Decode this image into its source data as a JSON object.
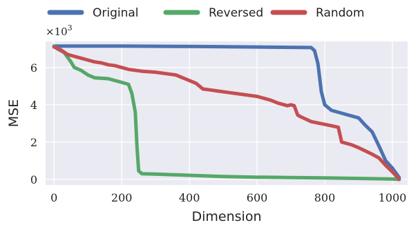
{
  "chart_data": {
    "type": "line",
    "xlabel": "Dimension",
    "ylabel": "MSE",
    "y_scale_label": "×10",
    "y_scale_exponent": "3",
    "xlim": [
      -25,
      1045
    ],
    "ylim": [
      -0.3,
      7.4
    ],
    "x_ticks": [
      0,
      200,
      400,
      600,
      800,
      1000
    ],
    "x_tick_labels": [
      "0",
      "200",
      "400",
      "600",
      "800",
      "1000"
    ],
    "y_ticks": [
      0,
      2,
      4,
      6
    ],
    "y_tick_labels": [
      "0",
      "2",
      "4",
      "6"
    ],
    "grid": true,
    "legend_position": "top",
    "series": [
      {
        "name": "Original",
        "color": "#4c72b0",
        "x": [
          0,
          200,
          400,
          600,
          700,
          760,
          770,
          780,
          790,
          800,
          820,
          860,
          900,
          920,
          940,
          960,
          980,
          1000,
          1020
        ],
        "y": [
          7.15,
          7.15,
          7.13,
          7.1,
          7.08,
          7.07,
          6.9,
          6.2,
          4.7,
          4.0,
          3.7,
          3.5,
          3.3,
          2.9,
          2.55,
          1.8,
          1.0,
          0.6,
          0.1
        ]
      },
      {
        "name": "Reversed",
        "color": "#55a868",
        "x": [
          0,
          10,
          30,
          50,
          60,
          80,
          100,
          120,
          160,
          200,
          220,
          230,
          240,
          245,
          250,
          260,
          300,
          400,
          500,
          600,
          700,
          800,
          900,
          1000,
          1020
        ],
        "y": [
          7.15,
          7.0,
          6.8,
          6.3,
          6.0,
          5.85,
          5.6,
          5.45,
          5.4,
          5.2,
          5.1,
          4.6,
          3.6,
          1.8,
          0.45,
          0.3,
          0.28,
          0.22,
          0.15,
          0.12,
          0.1,
          0.08,
          0.05,
          0.02,
          0.0
        ]
      },
      {
        "name": "Random",
        "color": "#c44e52",
        "x": [
          0,
          20,
          40,
          60,
          80,
          100,
          120,
          140,
          160,
          180,
          200,
          220,
          240,
          260,
          300,
          340,
          360,
          380,
          400,
          420,
          440,
          460,
          480,
          520,
          560,
          600,
          640,
          660,
          680,
          690,
          700,
          710,
          720,
          730,
          760,
          800,
          840,
          850,
          880,
          900,
          940,
          960,
          980,
          1000,
          1020
        ],
        "y": [
          7.1,
          6.95,
          6.7,
          6.6,
          6.5,
          6.4,
          6.3,
          6.25,
          6.15,
          6.1,
          6.0,
          5.9,
          5.85,
          5.8,
          5.75,
          5.65,
          5.6,
          5.45,
          5.3,
          5.15,
          4.85,
          4.8,
          4.75,
          4.65,
          4.55,
          4.45,
          4.25,
          4.1,
          4.0,
          3.95,
          4.0,
          3.95,
          3.45,
          3.35,
          3.1,
          2.95,
          2.8,
          2.0,
          1.85,
          1.7,
          1.35,
          1.15,
          0.75,
          0.4,
          0.0
        ]
      }
    ]
  }
}
